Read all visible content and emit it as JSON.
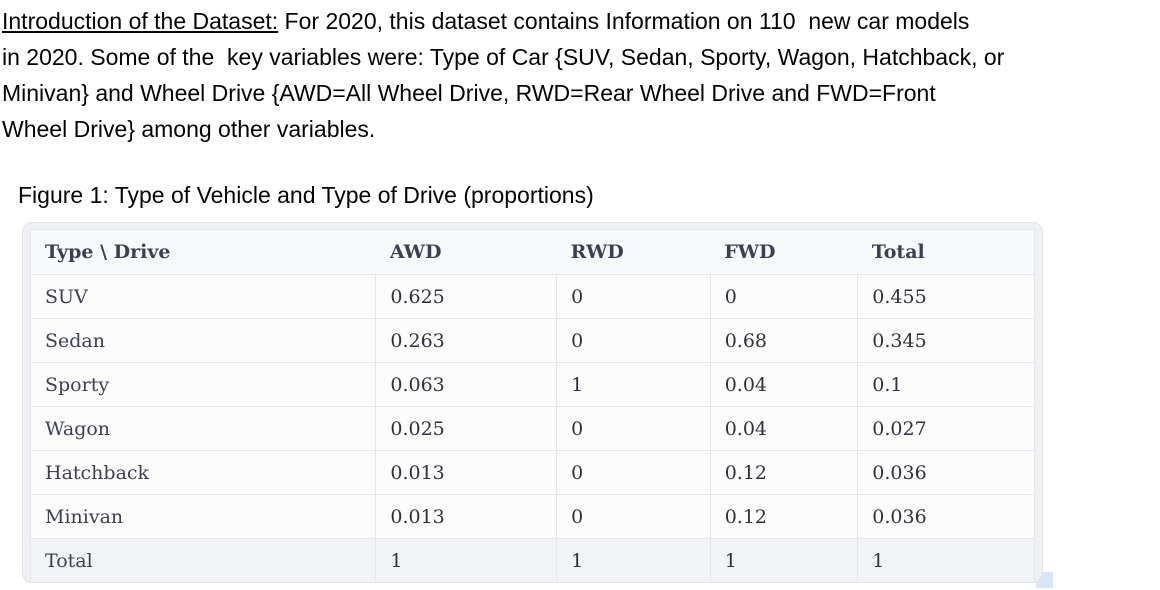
{
  "intro": {
    "underlined_label": "Introduction of the Dataset:",
    "line1_rest": " For 2020, this dataset contains Information on 110  new car models",
    "line2": "in 2020. Some of the  key variables were: Type of Car {SUV, Sedan, Sporty, Wagon, Hatchback, or",
    "line3": "Minivan} and Wheel Drive {AWD=All Wheel Drive, RWD=Rear Wheel Drive and FWD=Front",
    "line4": "Wheel Drive} among other variables."
  },
  "figure": {
    "caption": "Figure 1: Type of Vehicle and Type of Drive (proportions)"
  },
  "chart_data": {
    "type": "table",
    "title": "Figure 1: Type of Vehicle and Type of Drive (proportions)",
    "columns": [
      "Type \\ Drive",
      "AWD",
      "RWD",
      "FWD",
      "Total"
    ],
    "rows": [
      {
        "label": "SUV",
        "values": [
          0.625,
          0,
          0,
          0.455
        ]
      },
      {
        "label": "Sedan",
        "values": [
          0.263,
          0,
          0.68,
          0.345
        ]
      },
      {
        "label": "Sporty",
        "values": [
          0.063,
          1,
          0.04,
          0.1
        ]
      },
      {
        "label": "Wagon",
        "values": [
          0.025,
          0,
          0.04,
          0.027
        ]
      },
      {
        "label": "Hatchback",
        "values": [
          0.013,
          0,
          0.12,
          0.036
        ]
      },
      {
        "label": "Minivan",
        "values": [
          0.013,
          0,
          0.12,
          0.036
        ]
      },
      {
        "label": "Total",
        "values": [
          1,
          1,
          1,
          1
        ]
      }
    ]
  },
  "colors": {
    "table_header_text": "#3d3f54",
    "table_cell_text": "#30313d",
    "card_frame": "#eef0f3",
    "grid_line": "#e5e6eb",
    "total_row_bg": "#f2f3f6",
    "artifact_blue": "#d9e6f7"
  }
}
